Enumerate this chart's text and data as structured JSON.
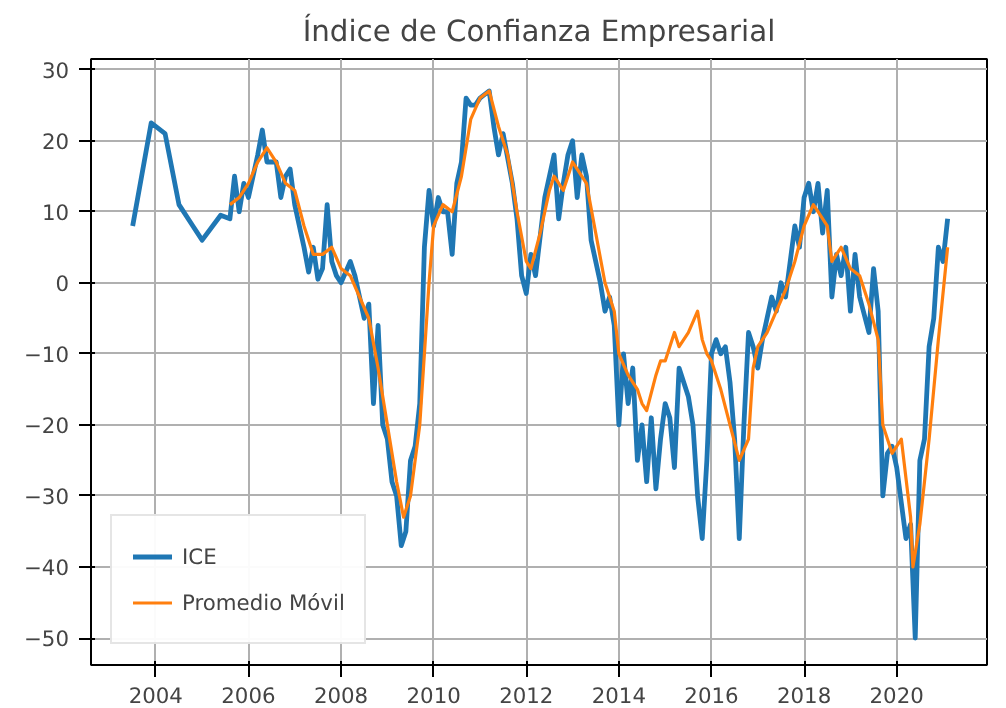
{
  "chart_data": {
    "type": "line",
    "title": "Índice de Confianza Empresarial",
    "xlim": [
      2002.6,
      2021.95
    ],
    "xticks": [
      2004,
      2006,
      2008,
      2010,
      2012,
      2014,
      2016,
      2018,
      2020
    ],
    "ylim": [
      -53.8,
      31.5
    ],
    "yticks": [
      -50,
      -40,
      -30,
      -20,
      -10,
      0,
      10,
      20,
      30
    ],
    "grid": true,
    "legend": "bottom left",
    "series": [
      {
        "name": "ICE",
        "color": "#1f77b4",
        "x": [
          2003.5,
          2003.9,
          2004.2,
          2004.5,
          2004.8,
          2005.0,
          2005.4,
          2005.6,
          2005.7,
          2005.8,
          2005.9,
          2006.0,
          2006.2,
          2006.3,
          2006.4,
          2006.6,
          2006.7,
          2006.8,
          2006.9,
          2007.0,
          2007.2,
          2007.3,
          2007.4,
          2007.5,
          2007.6,
          2007.7,
          2007.8,
          2007.9,
          2008.0,
          2008.2,
          2008.3,
          2008.5,
          2008.6,
          2008.7,
          2008.8,
          2008.9,
          2009.0,
          2009.1,
          2009.2,
          2009.3,
          2009.4,
          2009.5,
          2009.6,
          2009.7,
          2009.8,
          2009.9,
          2010.0,
          2010.1,
          2010.2,
          2010.3,
          2010.4,
          2010.5,
          2010.6,
          2010.7,
          2010.8,
          2010.9,
          2011.0,
          2011.2,
          2011.3,
          2011.4,
          2011.5,
          2011.7,
          2011.8,
          2011.9,
          2012.0,
          2012.1,
          2012.2,
          2012.4,
          2012.5,
          2012.6,
          2012.7,
          2012.8,
          2012.9,
          2013.0,
          2013.1,
          2013.2,
          2013.3,
          2013.4,
          2013.6,
          2013.7,
          2013.8,
          2013.9,
          2014.0,
          2014.1,
          2014.2,
          2014.3,
          2014.4,
          2014.5,
          2014.6,
          2014.7,
          2014.8,
          2014.9,
          2015.0,
          2015.1,
          2015.2,
          2015.3,
          2015.5,
          2015.6,
          2015.7,
          2015.8,
          2015.9,
          2016.0,
          2016.1,
          2016.2,
          2016.3,
          2016.4,
          2016.5,
          2016.6,
          2016.7,
          2016.8,
          2016.9,
          2017.0,
          2017.1,
          2017.2,
          2017.3,
          2017.4,
          2017.5,
          2017.6,
          2017.8,
          2017.9,
          2018.0,
          2018.1,
          2018.2,
          2018.3,
          2018.4,
          2018.5,
          2018.6,
          2018.7,
          2018.8,
          2018.9,
          2019.0,
          2019.1,
          2019.2,
          2019.4,
          2019.5,
          2019.6,
          2019.7,
          2019.8,
          2019.9,
          2020.0,
          2020.2,
          2020.3,
          2020.4,
          2020.5,
          2020.6,
          2020.7,
          2020.8,
          2020.9,
          2021.0,
          2021.1
        ],
        "values": [
          8,
          22.5,
          21,
          11,
          8,
          6,
          9.5,
          9,
          15,
          10,
          14,
          12,
          18,
          21.5,
          17,
          17,
          12,
          15,
          16,
          11,
          5,
          1.5,
          5,
          0.5,
          2,
          11,
          3,
          1,
          0,
          3,
          1,
          -5,
          -3,
          -17,
          -6,
          -20,
          -22,
          -28,
          -30,
          -37,
          -35,
          -25,
          -23,
          -17,
          5,
          13,
          8,
          12,
          10,
          10,
          4,
          14,
          17,
          26,
          25,
          25,
          26,
          27,
          22,
          18,
          21,
          14,
          9,
          1,
          -1.5,
          4,
          1,
          12,
          15,
          18,
          9,
          14,
          18,
          20,
          12,
          18,
          15,
          6,
          0,
          -4,
          -2,
          -6,
          -20,
          -10,
          -17,
          -12,
          -25,
          -20,
          -28,
          -19,
          -29,
          -22,
          -17,
          -19,
          -26,
          -12,
          -16,
          -20,
          -30,
          -36,
          -25,
          -10,
          -8,
          -10,
          -9,
          -14,
          -22,
          -36,
          -20,
          -7,
          -9,
          -12,
          -8,
          -5,
          -2,
          -4,
          0,
          -2,
          8,
          5,
          12,
          14,
          10,
          14,
          7,
          13,
          -2,
          4,
          1,
          5,
          -4,
          4,
          -2,
          -7,
          2,
          -4,
          -30,
          -24,
          -23,
          -26,
          -36,
          -34,
          -50,
          -25,
          -22,
          -9,
          -5,
          5,
          3,
          9
        ]
      },
      {
        "name": "Promedio Móvil",
        "color": "#ff7f0e",
        "x": [
          2005.6,
          2005.8,
          2006.0,
          2006.2,
          2006.4,
          2006.6,
          2006.8,
          2007.0,
          2007.2,
          2007.4,
          2007.6,
          2007.8,
          2008.0,
          2008.2,
          2008.4,
          2008.6,
          2008.8,
          2009.0,
          2009.2,
          2009.35,
          2009.5,
          2009.7,
          2009.9,
          2010.0,
          2010.2,
          2010.4,
          2010.6,
          2010.8,
          2011.0,
          2011.2,
          2011.4,
          2011.6,
          2011.8,
          2012.0,
          2012.1,
          2012.3,
          2012.5,
          2012.6,
          2012.8,
          2013.0,
          2013.1,
          2013.3,
          2013.5,
          2013.7,
          2013.9,
          2014.0,
          2014.2,
          2014.4,
          2014.5,
          2014.6,
          2014.8,
          2014.9,
          2015.0,
          2015.2,
          2015.3,
          2015.5,
          2015.7,
          2015.8,
          2015.9,
          2016.0,
          2016.2,
          2016.4,
          2016.6,
          2016.8,
          2016.9,
          2017.0,
          2017.2,
          2017.4,
          2017.6,
          2017.8,
          2018.0,
          2018.2,
          2018.3,
          2018.5,
          2018.6,
          2018.8,
          2019.0,
          2019.2,
          2019.4,
          2019.6,
          2019.7,
          2019.9,
          2020.1,
          2020.3,
          2020.35,
          2020.5,
          2020.7,
          2020.9,
          2021.1
        ],
        "values": [
          11,
          12,
          14,
          17,
          19,
          17,
          14,
          13,
          8,
          4,
          4,
          5,
          2,
          1,
          -2,
          -5,
          -12,
          -20,
          -28,
          -33,
          -30,
          -20,
          0,
          8,
          11,
          10,
          15,
          23,
          26,
          27,
          22,
          18,
          10,
          3,
          2,
          7,
          13,
          15,
          13,
          17,
          16,
          14,
          7,
          0,
          -4,
          -10,
          -13,
          -15,
          -17,
          -18,
          -13,
          -11,
          -11,
          -7,
          -9,
          -7,
          -4,
          -8,
          -10,
          -11,
          -15,
          -20,
          -25,
          -22,
          -12,
          -9,
          -7,
          -4,
          -1,
          3,
          8,
          11,
          10,
          8,
          3,
          5,
          2,
          1,
          -3,
          -8,
          -20,
          -24,
          -22,
          -33,
          -40,
          -34,
          -22,
          -8,
          5
        ]
      }
    ]
  }
}
